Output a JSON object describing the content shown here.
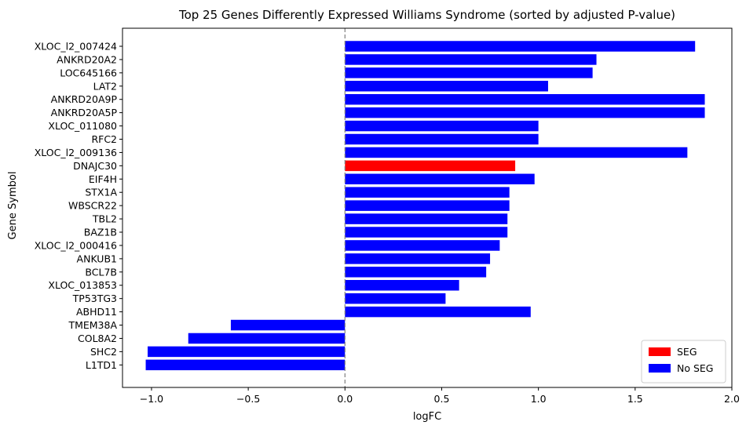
{
  "chart_data": {
    "type": "bar",
    "orientation": "horizontal",
    "title": "Top 25 Genes Differently Expressed Williams Syndrome (sorted by adjusted P-value)",
    "xlabel": "logFC",
    "ylabel": "Gene Symbol",
    "xlim": [
      -1.15,
      2.0
    ],
    "xticks": [
      -1.0,
      -0.5,
      0.0,
      0.5,
      1.0,
      1.5,
      2.0
    ],
    "xtick_labels": [
      "−1.0",
      "−0.5",
      "0.0",
      "0.5",
      "1.0",
      "1.5",
      "2.0"
    ],
    "zero_line": {
      "x": 0,
      "style": "dashed",
      "color": "#808080"
    },
    "grid": false,
    "legend": {
      "placement": "lower-right",
      "entries": [
        {
          "label": "SEG",
          "color": "#ff0000"
        },
        {
          "label": "No SEG",
          "color": "#0000ff"
        }
      ]
    },
    "categories": [
      "XLOC_l2_007424",
      "ANKRD20A2",
      "LOC645166",
      "LAT2",
      "ANKRD20A9P",
      "ANKRD20A5P",
      "XLOC_011080",
      "RFC2",
      "XLOC_l2_009136",
      "DNAJC30",
      "EIF4H",
      "STX1A",
      "WBSCR22",
      "TBL2",
      "BAZ1B",
      "XLOC_l2_000416",
      "ANKUB1",
      "BCL7B",
      "XLOC_013853",
      "TP53TG3",
      "ABHD11",
      "TMEM38A",
      "COL8A2",
      "SHC2",
      "L1TD1"
    ],
    "values": [
      1.81,
      1.3,
      1.28,
      1.05,
      1.86,
      1.86,
      1.0,
      1.0,
      1.77,
      0.88,
      0.98,
      0.85,
      0.85,
      0.84,
      0.84,
      0.8,
      0.75,
      0.73,
      0.59,
      0.52,
      0.96,
      -0.59,
      -0.81,
      -1.02,
      -1.03
    ],
    "groups": [
      "No SEG",
      "No SEG",
      "No SEG",
      "No SEG",
      "No SEG",
      "No SEG",
      "No SEG",
      "No SEG",
      "No SEG",
      "SEG",
      "No SEG",
      "No SEG",
      "No SEG",
      "No SEG",
      "No SEG",
      "No SEG",
      "No SEG",
      "No SEG",
      "No SEG",
      "No SEG",
      "No SEG",
      "No SEG",
      "No SEG",
      "No SEG",
      "No SEG"
    ],
    "colors": {
      "SEG": "#ff0000",
      "No SEG": "#0000ff"
    }
  }
}
